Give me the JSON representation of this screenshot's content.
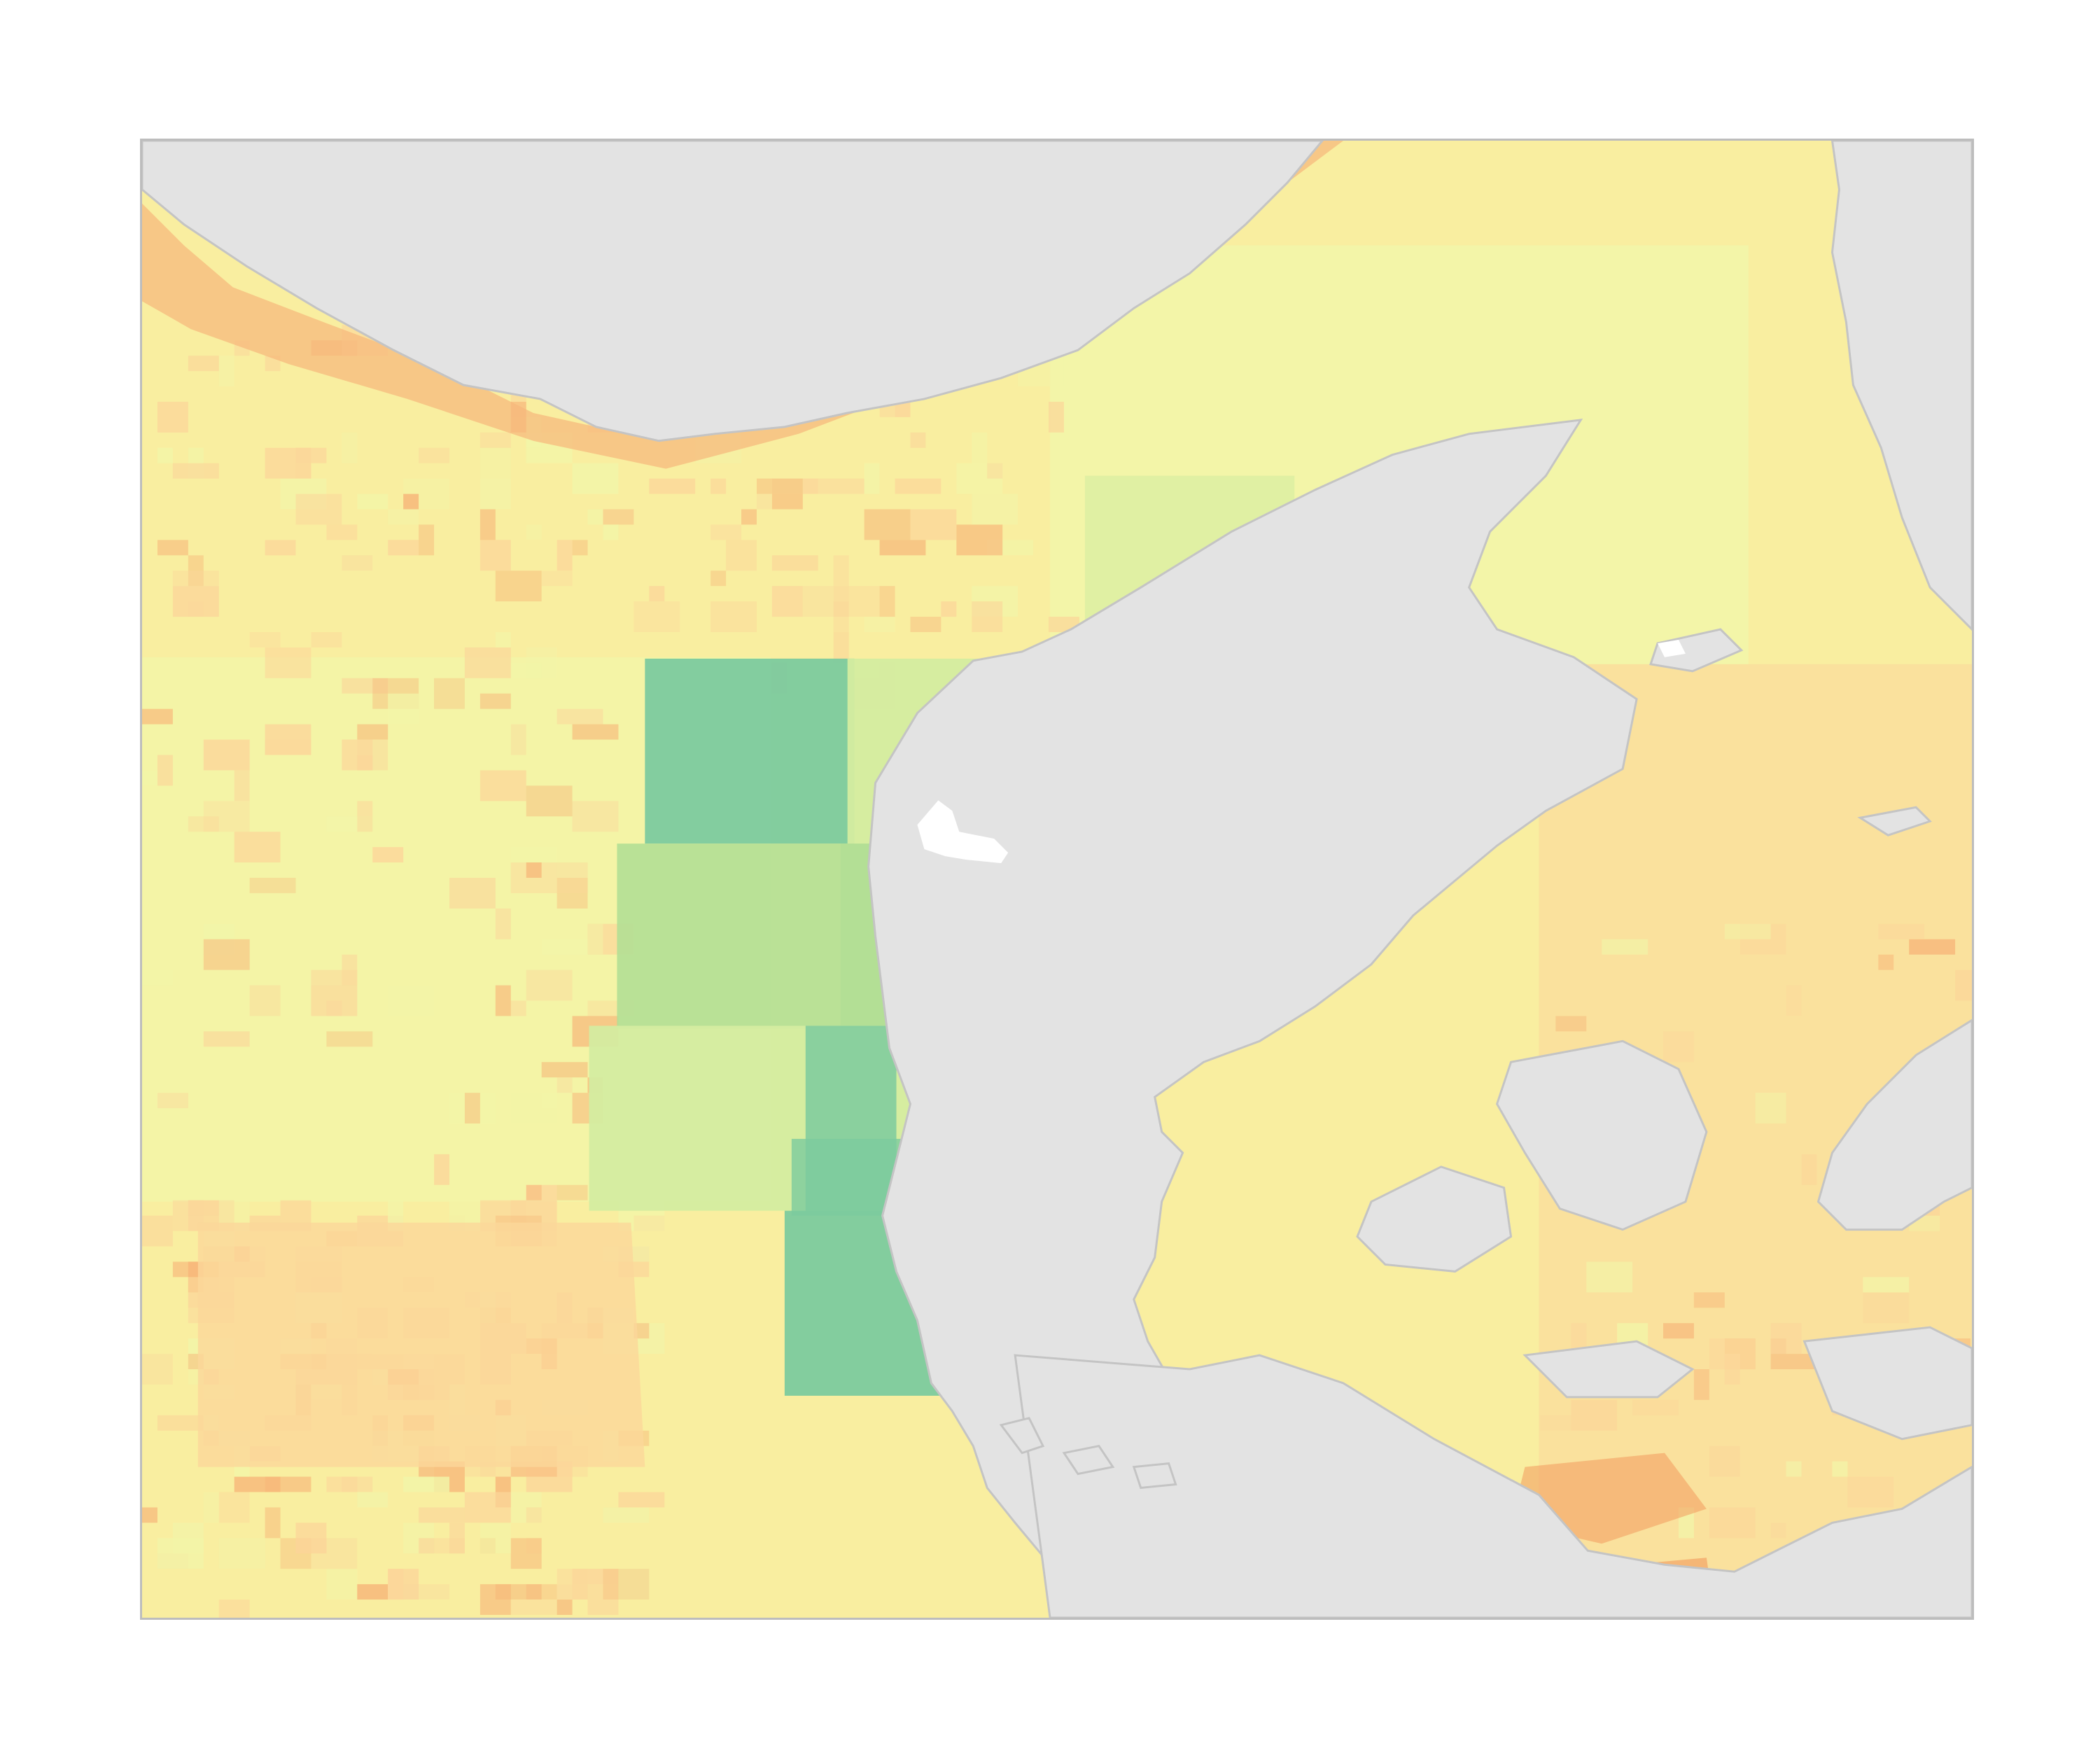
{
  "map": {
    "colors": {
      "land": "#e3e3e3",
      "coast_line": "#c4c4c4",
      "frame_border": "#bdbdbd",
      "inland_water": "#ffffff",
      "sea_base": "#f9eea0",
      "sea_light": "#f2f5a8",
      "sea_warm": "#fbd79a",
      "sea_orange": "#f7b77a",
      "sea_deep_orange": "#f29a5c",
      "green_light": "#d4eca0",
      "green_mid": "#b3df95",
      "green_dark": "#7cca9e",
      "blue_spot": "#3a96c4"
    },
    "icons": [
      "land-mass-norway",
      "land-mass-jutland",
      "land-mass-sweden",
      "danish-islands"
    ]
  }
}
